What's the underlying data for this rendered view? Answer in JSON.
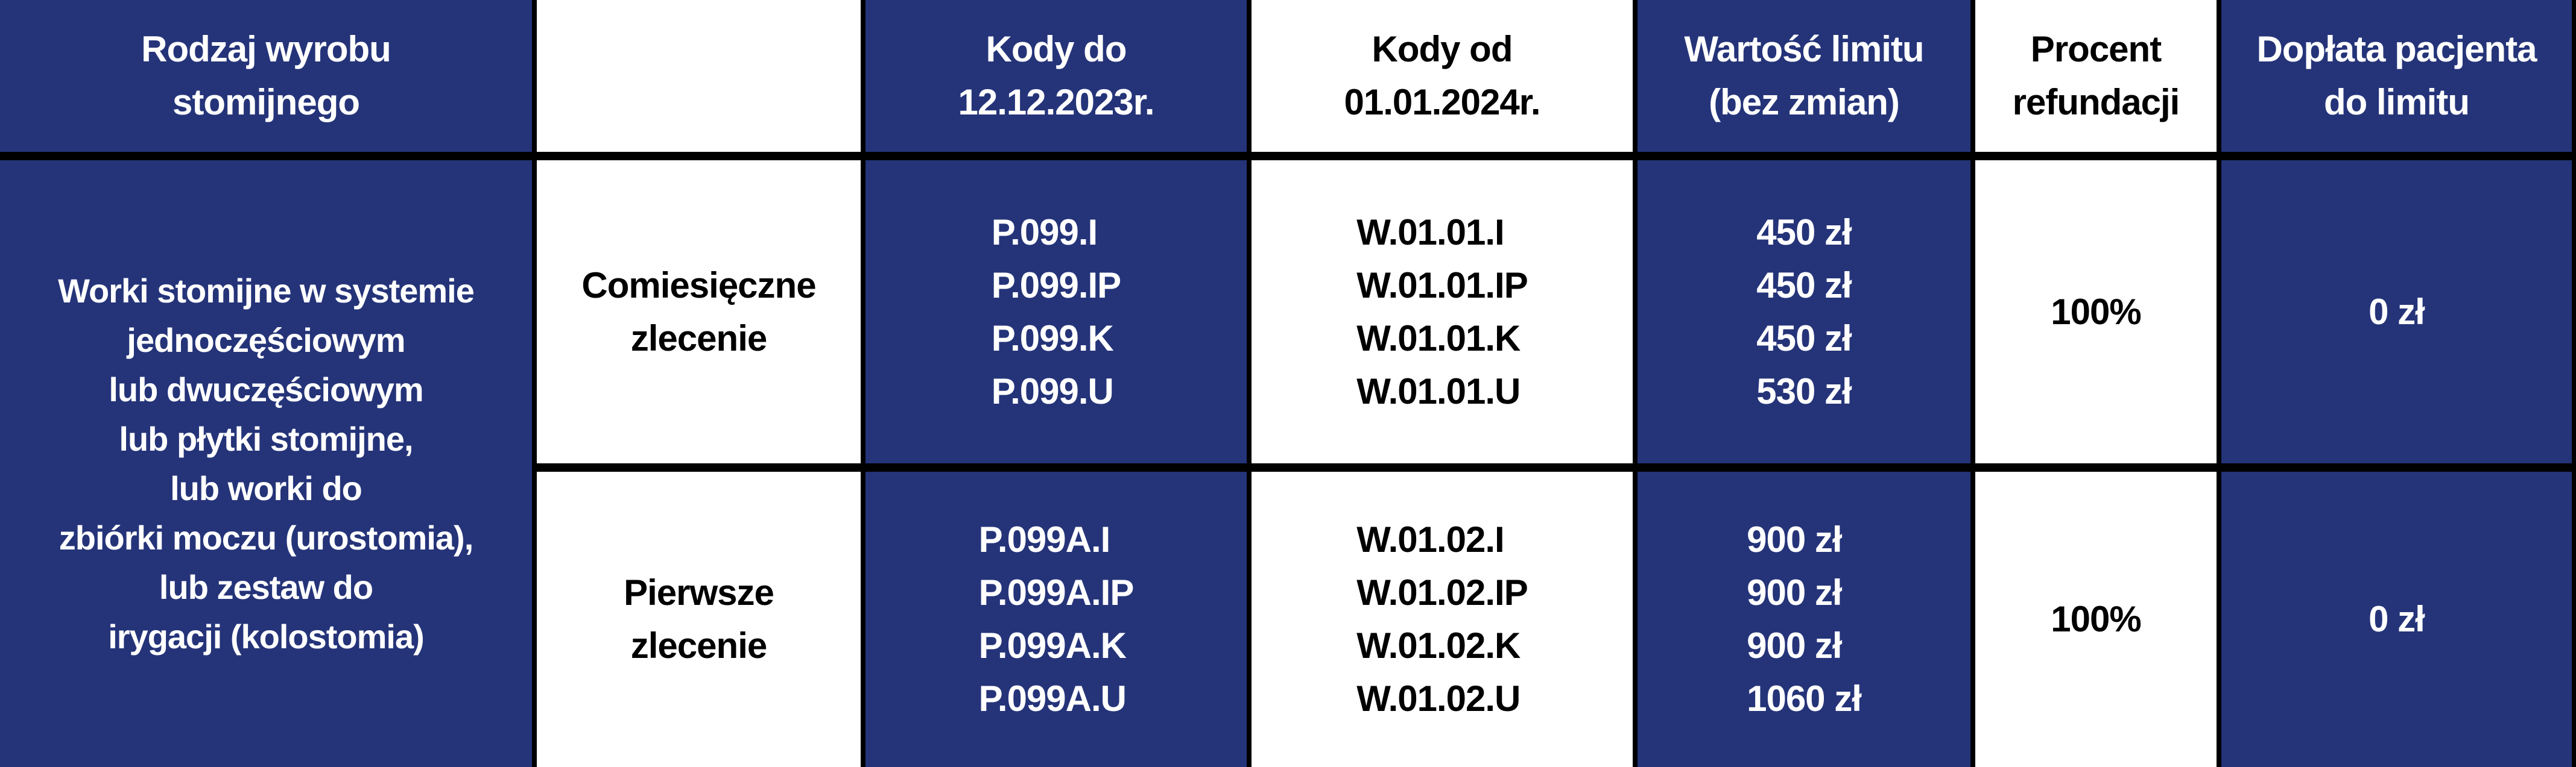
{
  "headers": [
    [
      "Rodzaj wyrobu",
      "stomijnego"
    ],
    [],
    [
      "Kody do",
      "12.12.2023r."
    ],
    [
      "Kody od",
      "01.01.2024r."
    ],
    [
      "Wartość limitu",
      "(bez zmian)"
    ],
    [
      "Procent",
      "refundacji"
    ],
    [
      "Dopłata pacjenta",
      "do limitu"
    ]
  ],
  "product_type": [
    "Worki stomijne w systemie",
    "jednoczęściowym",
    "lub dwuczęściowym",
    "lub płytki stomijne,",
    "lub worki do",
    "zbiórki moczu (urostomia),",
    "lub zestaw do",
    "irygacji (kolostomia)"
  ],
  "rows": [
    {
      "order": [
        "Comiesięczne",
        "zlecenie"
      ],
      "codes_old": [
        "P.099.I",
        "P.099.IP",
        "P.099.K",
        "P.099.U"
      ],
      "codes_new": [
        "W.01.01.I",
        "W.01.01.IP",
        "W.01.01.K",
        "W.01.01.U"
      ],
      "limits": [
        "450 zł",
        "450 zł",
        "450 zł",
        "530 zł"
      ],
      "refund": "100%",
      "copay": "0 zł"
    },
    {
      "order": [
        "Pierwsze",
        "zlecenie"
      ],
      "codes_old": [
        "P.099A.I",
        "P.099A.IP",
        "P.099A.K",
        "P.099A.U"
      ],
      "codes_new": [
        "W.01.02.I",
        "W.01.02.IP",
        "W.01.02.K",
        "W.01.02.U"
      ],
      "limits": [
        "900 zł",
        "900 zł",
        "900 zł",
        "1060 zł"
      ],
      "refund": "100%",
      "copay": "0 zł"
    }
  ],
  "colors": {
    "blue": "#253479",
    "white": "#ffffff",
    "border": "#000000"
  }
}
